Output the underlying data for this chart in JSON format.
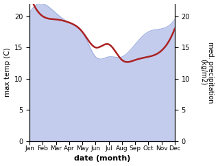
{
  "months": [
    "Jan",
    "Feb",
    "Mar",
    "Apr",
    "May",
    "Jun",
    "Jul",
    "Aug",
    "Sep",
    "Oct",
    "Nov",
    "Dec"
  ],
  "max_temp": [
    20.5,
    22.0,
    20.5,
    19.0,
    17.5,
    13.5,
    13.5,
    13.5,
    15.5,
    17.5,
    18.0,
    19.5
  ],
  "precipitation": [
    23.5,
    20.0,
    19.5,
    19.0,
    17.5,
    15.0,
    15.5,
    13.0,
    13.0,
    13.5,
    14.5,
    18.0
  ],
  "temp_fill_color": "#b0bce8",
  "temp_line_color": "#9aabe0",
  "precip_color": "#aa2222",
  "ylim_temp": [
    0,
    22
  ],
  "ylim_precip": [
    0,
    22
  ],
  "yticks_temp": [
    0,
    5,
    10,
    15,
    20
  ],
  "yticks_precip": [
    0,
    5,
    10,
    15,
    20
  ],
  "xlabel": "date (month)",
  "ylabel_left": "max temp (C)",
  "ylabel_right": "med. precipitation\n(kg/m2)",
  "bg_color": "#ffffff",
  "figsize": [
    3.18,
    2.42
  ],
  "dpi": 100
}
